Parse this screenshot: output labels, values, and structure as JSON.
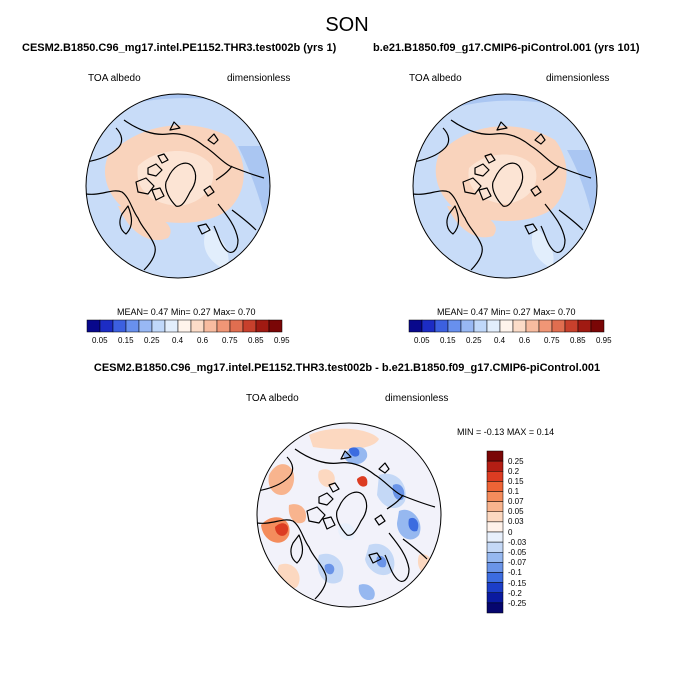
{
  "season": "SON",
  "panels": [
    {
      "case": "CESM2.B1850.C96_mg17.intel.PE1152.THR3.test002b (yrs 1)",
      "variable": "TOA albedo",
      "units": "dimensionless",
      "mean_label": "MEAN=",
      "mean": "0.47",
      "min_label": "Min=",
      "min": "0.27",
      "max_label": "Max=",
      "max": "0.70"
    },
    {
      "case": "b.e21.B1850.f09_g17.CMIP6-piControl.001 (yrs 101)",
      "variable": "TOA albedo",
      "units": "dimensionless",
      "mean_label": "MEAN=",
      "mean": "0.47",
      "min_label": "Min=",
      "min": "0.27",
      "max_label": "Max=",
      "max": "0.70"
    }
  ],
  "abs_colorbar": {
    "colors": [
      "#08088c",
      "#1c2cc4",
      "#3c60e0",
      "#6890ee",
      "#98b8f4",
      "#c0d8fa",
      "#e2eefc",
      "#fff4ec",
      "#fcdcc8",
      "#f8bca0",
      "#f09676",
      "#e06e50",
      "#c8402c",
      "#a01a12",
      "#7a0606"
    ],
    "labels": [
      "0.05",
      "0.15",
      "0.25",
      "0.4",
      "0.6",
      "0.75",
      "0.85",
      "0.95"
    ]
  },
  "diff_panel": {
    "title": "CESM2.B1850.C96_mg17.intel.PE1152.THR3.test002b - b.e21.B1850.f09_g17.CMIP6-piControl.001",
    "variable": "TOA albedo",
    "units": "dimensionless",
    "min_label": "MIN =",
    "min": "-0.13",
    "max_label": "MAX =",
    "max": "0.14"
  },
  "diff_colorbar": {
    "colors": [
      "#7a0606",
      "#b41e14",
      "#dc3c22",
      "#ee6436",
      "#f48c5c",
      "#f8b48e",
      "#fcd8c0",
      "#fff2ea",
      "#e8f0fc",
      "#c4d8f6",
      "#96b8f0",
      "#6a94e8",
      "#3c6ce0",
      "#1c3ec8",
      "#0a1aa0",
      "#06066e"
    ],
    "labels": [
      "0.25",
      "0.2",
      "0.15",
      "0.1",
      "0.07",
      "0.05",
      "0.03",
      "0",
      "-0.03",
      "-0.05",
      "-0.07",
      "-0.1",
      "-0.15",
      "-0.2",
      "-0.25"
    ]
  }
}
